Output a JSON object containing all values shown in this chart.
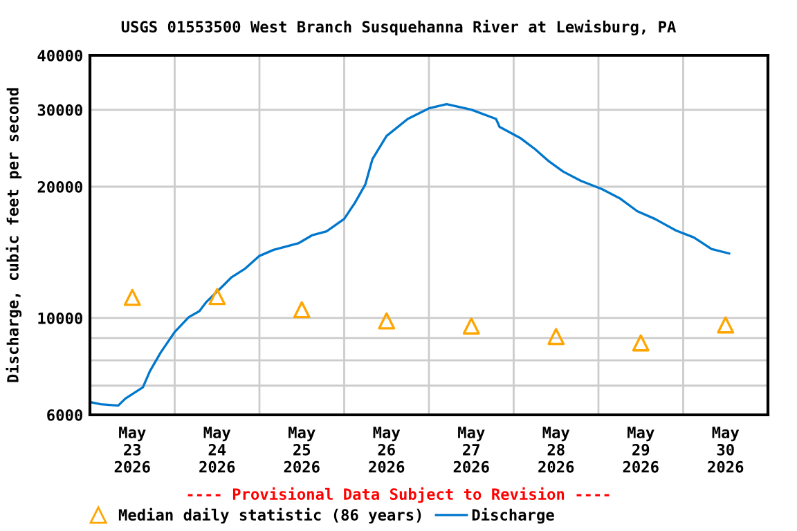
{
  "chart_data": {
    "type": "line",
    "title": "USGS 01553500 West Branch Susquehanna River at Lewisburg, PA",
    "ylabel": "Discharge, cubic feet per second",
    "log": "y",
    "grid": true,
    "legend": "bottom",
    "annotations": [
      "---- Provisional Data Subject to Revision ----"
    ],
    "xlim": [
      "2026-05-23T00:00",
      "2026-05-31T00:00"
    ],
    "xticks": [
      {
        "value": "2026-05-23T12:00",
        "label": "May\n23\n2026"
      },
      {
        "value": "2026-05-24T12:00",
        "label": "May\n24\n2026"
      },
      {
        "value": "2026-05-25T12:00",
        "label": "May\n25\n2026"
      },
      {
        "value": "2026-05-26T12:00",
        "label": "May\n26\n2026"
      },
      {
        "value": "2026-05-27T12:00",
        "label": "May\n27\n2026"
      },
      {
        "value": "2026-05-28T12:00",
        "label": "May\n28\n2026"
      },
      {
        "value": "2026-05-29T12:00",
        "label": "May\n29\n2026"
      },
      {
        "value": "2026-05-30T12:00",
        "label": "May\n30\n2026"
      },
      {
        "value": "2026-05-24T00:00",
        "label": null
      },
      {
        "value": "2026-05-25T00:00",
        "label": null
      },
      {
        "value": "2026-05-26T00:00",
        "label": null
      },
      {
        "value": "2026-05-27T00:00",
        "label": null
      },
      {
        "value": "2026-05-28T00:00",
        "label": null
      },
      {
        "value": "2026-05-29T00:00",
        "label": null
      },
      {
        "value": "2026-05-30T00:00",
        "label": null
      }
    ],
    "ylim": [
      6000,
      40000
    ],
    "yticks": [
      6000,
      {
        "value": 7000,
        "label": null
      },
      {
        "value": 8000,
        "label": null
      },
      {
        "value": 9000,
        "label": null
      },
      10000,
      20000,
      30000,
      40000
    ],
    "series": [
      {
        "name": "Median daily statistic (86 years)",
        "type": "scatter",
        "marker": "triangle",
        "color": "#ffa500",
        "x": [
          "2026-05-23T12:00",
          "2026-05-24T12:00",
          "2026-05-25T12:00",
          "2026-05-26T12:00",
          "2026-05-27T12:00",
          "2026-05-28T12:00",
          "2026-05-29T12:00",
          "2026-05-30T12:00"
        ],
        "values": [
          11150,
          11200,
          10450,
          9850,
          9590,
          9070,
          8770,
          9640
        ]
      },
      {
        "name": "Discharge",
        "color": "#0077cc",
        "x": [
          "2026-05-23T00:00",
          "2026-05-23T03:00",
          "2026-05-23T08:00",
          "2026-05-23T10:00",
          "2026-05-23T15:00",
          "2026-05-23T17:00",
          "2026-05-23T20:00",
          "2026-05-24T00:00",
          "2026-05-24T04:00",
          "2026-05-24T07:00",
          "2026-05-24T09:00",
          "2026-05-24T13:00",
          "2026-05-24T16:00",
          "2026-05-24T20:00",
          "2026-05-25T00:00",
          "2026-05-25T04:00",
          "2026-05-25T11:00",
          "2026-05-25T15:00",
          "2026-05-25T19:00",
          "2026-05-26T00:00",
          "2026-05-26T03:00",
          "2026-05-26T06:00",
          "2026-05-26T08:00",
          "2026-05-26T12:00",
          "2026-05-26T18:00",
          "2026-05-27T00:00",
          "2026-05-27T05:00",
          "2026-05-27T12:00",
          "2026-05-27T19:00",
          "2026-05-27T20:00",
          "2026-05-28T02:00",
          "2026-05-28T06:00",
          "2026-05-28T10:00",
          "2026-05-28T14:00",
          "2026-05-28T19:00",
          "2026-05-29T01:00",
          "2026-05-29T06:00",
          "2026-05-29T11:00",
          "2026-05-29T16:00",
          "2026-05-29T22:00",
          "2026-05-30T03:00",
          "2026-05-30T08:00",
          "2026-05-30T13:00"
        ],
        "values": [
          6420,
          6345,
          6300,
          6535,
          6940,
          7560,
          8330,
          9290,
          10050,
          10370,
          10890,
          11710,
          12380,
          12990,
          13880,
          14330,
          14830,
          15490,
          15800,
          16870,
          18350,
          20250,
          23130,
          26140,
          28590,
          30240,
          30910,
          30020,
          28590,
          27420,
          25810,
          24400,
          22850,
          21660,
          20630,
          19750,
          18820,
          17570,
          16870,
          15860,
          15300,
          14400,
          14060
        ]
      }
    ]
  }
}
